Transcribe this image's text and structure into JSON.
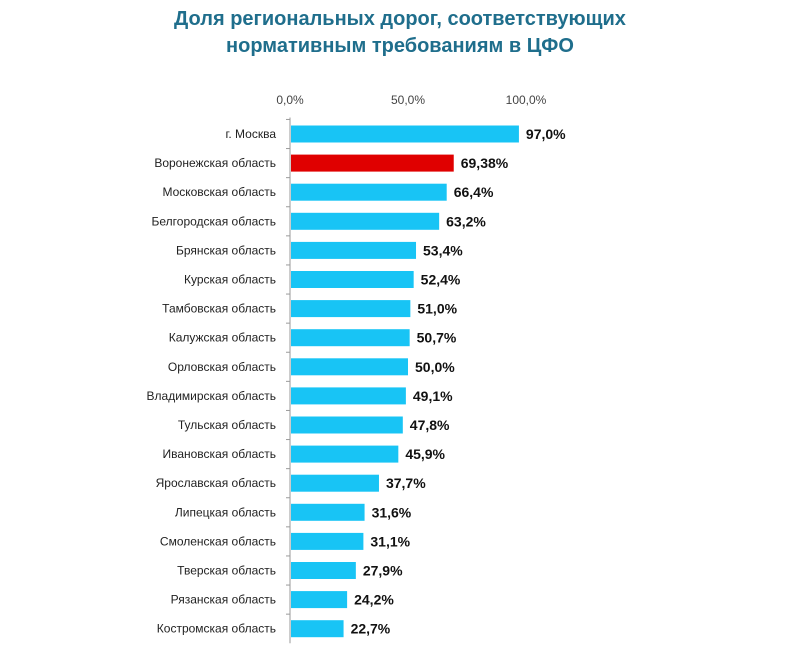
{
  "chart_data": {
    "type": "bar",
    "orientation": "horizontal",
    "title_lines": [
      "Доля региональных дорог, соответствующих",
      "нормативным требованиям в ЦФО"
    ],
    "xlim": [
      0,
      100
    ],
    "ticks": [
      0,
      50,
      100
    ],
    "tick_labels": [
      "0,0%",
      "50,0%",
      "100,0%"
    ],
    "tick_position": "top",
    "highlight_color": "#e00000",
    "bar_color": "#18c4f5",
    "categories": [
      "г. Москва",
      "Воронежская область",
      "Московская область",
      "Белгородская область",
      "Брянская область",
      "Курская область",
      "Тамбовская область",
      "Калужская область",
      "Орловская область",
      "Владимирская область",
      "Тульская область",
      "Ивановская область",
      "Ярославская область",
      "Липецкая область",
      "Смоленская область",
      "Тверская область",
      "Рязанская область",
      "Костромская область"
    ],
    "values": [
      97.0,
      69.38,
      66.4,
      63.2,
      53.4,
      52.4,
      51.0,
      50.7,
      50.0,
      49.1,
      47.8,
      45.9,
      37.7,
      31.6,
      31.1,
      27.9,
      24.2,
      22.7
    ],
    "value_labels": [
      "97,0%",
      "69,38%",
      "66,4%",
      "63,2%",
      "53,4%",
      "52,4%",
      "51,0%",
      "50,7%",
      "50,0%",
      "49,1%",
      "47,8%",
      "45,9%",
      "37,7%",
      "31,6%",
      "31,1%",
      "27,9%",
      "24,2%",
      "22,7%"
    ],
    "highlight_index": 1
  }
}
